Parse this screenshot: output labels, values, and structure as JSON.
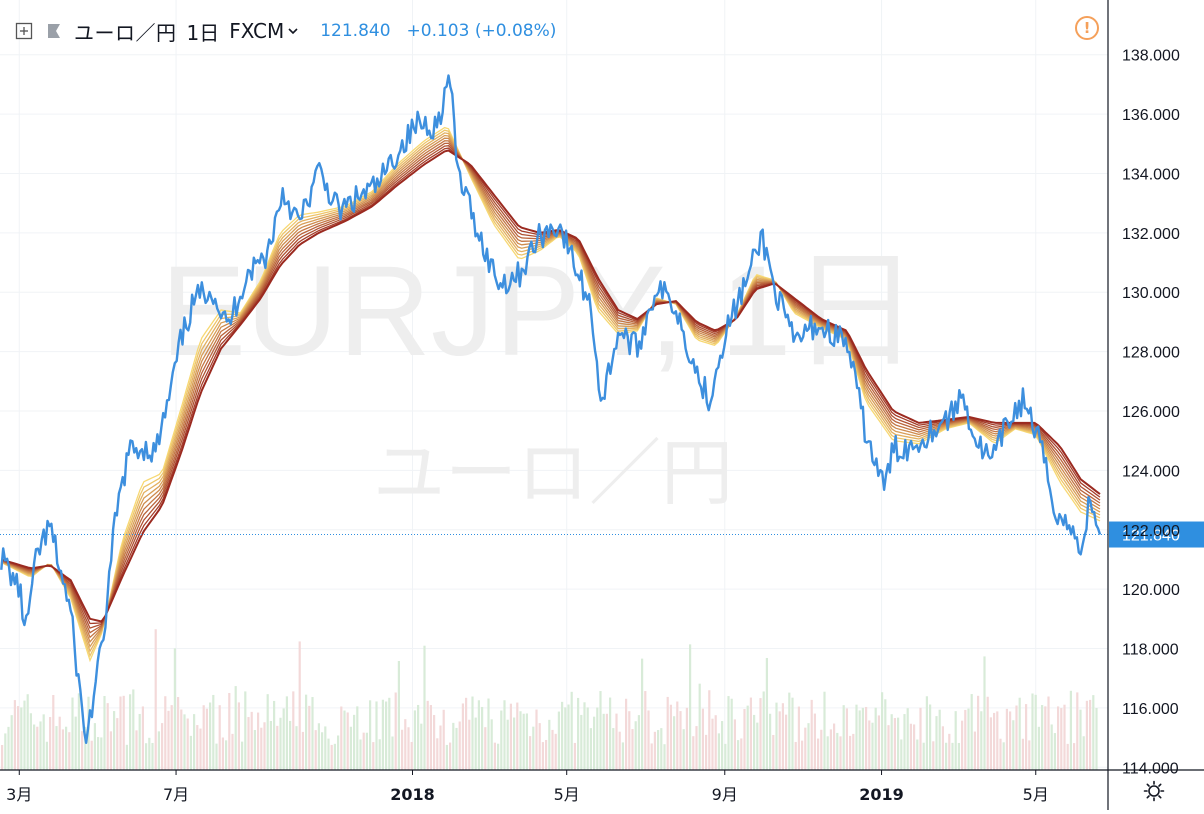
{
  "legend": {
    "symbol": "ユーロ／円",
    "interval": "1日",
    "source": "FXCM",
    "last_price": "121.840",
    "change": "+0.103 (+0.08%)"
  },
  "watermark": {
    "main": "EURJPY, 1日",
    "sub": "ユーロ／円"
  },
  "icons": {
    "add": "plus-square-icon",
    "flag": "flag-icon",
    "source_menu": "chevron-down-icon",
    "alert": "exclamation-circle-icon",
    "settings": "gear-icon"
  },
  "colors": {
    "price_line": "#3d8fde",
    "ribbon_fast": "#f7d873",
    "ribbon_slow": "#9b2a20",
    "volume_up": "#d8ebd8",
    "volume_down": "#f3d9d9",
    "price_tag_bg": "#2f8fe0"
  },
  "chart_data": {
    "type": "line",
    "title": "EURJPY, 1日",
    "subtitle": "ユーロ／円",
    "xlabel": "",
    "ylabel": "",
    "x_ticks": [
      "3月",
      "7月",
      "2018",
      "5月",
      "9月",
      "2019",
      "5月"
    ],
    "y_ticks": [
      "114.000",
      "116.000",
      "118.000",
      "120.000",
      "122.000",
      "124.000",
      "126.000",
      "128.000",
      "130.000",
      "132.000",
      "134.000",
      "136.000",
      "138.000"
    ],
    "ylim": [
      113.0,
      139.0
    ],
    "xlim": [
      "2017-02-14",
      "2019-06-20"
    ],
    "grid": true,
    "last_value_label": "121.840",
    "series": [
      {
        "type": "line",
        "values": [
          [
            "2017-02-15",
            121.1
          ],
          [
            "2017-03-01",
            120.0
          ],
          [
            "2017-03-06",
            118.6
          ],
          [
            "2017-03-15",
            121.2
          ],
          [
            "2017-03-25",
            122.1
          ],
          [
            "2017-04-10",
            119.2
          ],
          [
            "2017-04-18",
            116.2
          ],
          [
            "2017-04-22",
            114.9
          ],
          [
            "2017-05-05",
            118.2
          ],
          [
            "2017-05-15",
            122.4
          ],
          [
            "2017-05-25",
            124.6
          ],
          [
            "2017-06-05",
            124.8
          ],
          [
            "2017-06-15",
            124.6
          ],
          [
            "2017-06-25",
            126.3
          ],
          [
            "2017-07-05",
            128.4
          ],
          [
            "2017-07-15",
            129.7
          ],
          [
            "2017-07-28",
            130.2
          ],
          [
            "2017-08-10",
            128.8
          ],
          [
            "2017-08-25",
            130.6
          ],
          [
            "2017-09-10",
            131.3
          ],
          [
            "2017-09-22",
            133.4
          ],
          [
            "2017-10-05",
            132.3
          ],
          [
            "2017-10-20",
            134.1
          ],
          [
            "2017-11-05",
            132.7
          ],
          [
            "2017-11-20",
            133.2
          ],
          [
            "2017-12-05",
            133.6
          ],
          [
            "2017-12-20",
            134.7
          ],
          [
            "2018-01-05",
            135.7
          ],
          [
            "2018-01-20",
            135.6
          ],
          [
            "2018-01-30",
            137.3
          ],
          [
            "2018-02-05",
            134.1
          ],
          [
            "2018-02-15",
            132.8
          ],
          [
            "2018-03-01",
            131.1
          ],
          [
            "2018-03-10",
            130.3
          ],
          [
            "2018-03-25",
            130.6
          ],
          [
            "2018-04-10",
            131.9
          ],
          [
            "2018-04-25",
            132.3
          ],
          [
            "2018-05-10",
            130.6
          ],
          [
            "2018-05-20",
            129.5
          ],
          [
            "2018-05-28",
            126.2
          ],
          [
            "2018-06-10",
            128.7
          ],
          [
            "2018-06-25",
            128.1
          ],
          [
            "2018-07-10",
            130.2
          ],
          [
            "2018-07-25",
            129.5
          ],
          [
            "2018-08-10",
            127.3
          ],
          [
            "2018-08-20",
            126.4
          ],
          [
            "2018-09-01",
            128.6
          ],
          [
            "2018-09-20",
            130.6
          ],
          [
            "2018-09-30",
            131.9
          ],
          [
            "2018-10-10",
            130.1
          ],
          [
            "2018-10-25",
            128.3
          ],
          [
            "2018-11-10",
            128.9
          ],
          [
            "2018-11-25",
            128.6
          ],
          [
            "2018-12-05",
            128.3
          ],
          [
            "2018-12-20",
            125.2
          ],
          [
            "2019-01-03",
            123.4
          ],
          [
            "2019-01-10",
            124.7
          ],
          [
            "2019-01-25",
            124.8
          ],
          [
            "2019-02-10",
            125.4
          ],
          [
            "2019-02-25",
            125.9
          ],
          [
            "2019-03-05",
            126.6
          ],
          [
            "2019-03-15",
            125.0
          ],
          [
            "2019-03-28",
            124.3
          ],
          [
            "2019-04-10",
            125.7
          ],
          [
            "2019-04-22",
            126.4
          ],
          [
            "2019-05-05",
            124.8
          ],
          [
            "2019-05-15",
            122.8
          ],
          [
            "2019-05-28",
            122.0
          ],
          [
            "2019-06-05",
            121.4
          ],
          [
            "2019-06-12",
            122.9
          ],
          [
            "2019-06-20",
            121.84
          ]
        ]
      },
      {
        "type": "ribbon_band",
        "fast": [
          [
            "2017-02-15",
            120.9
          ],
          [
            "2017-03-10",
            120.4
          ],
          [
            "2017-03-25",
            120.9
          ],
          [
            "2017-04-10",
            119.7
          ],
          [
            "2017-04-25",
            117.6
          ],
          [
            "2017-05-05",
            118.6
          ],
          [
            "2017-05-20",
            121.6
          ],
          [
            "2017-06-05",
            123.6
          ],
          [
            "2017-06-20",
            123.9
          ],
          [
            "2017-07-05",
            126.1
          ],
          [
            "2017-07-20",
            128.4
          ],
          [
            "2017-08-05",
            129.4
          ],
          [
            "2017-08-20",
            129.3
          ],
          [
            "2017-09-05",
            130.4
          ],
          [
            "2017-09-20",
            132.0
          ],
          [
            "2017-10-05",
            132.6
          ],
          [
            "2017-10-20",
            132.7
          ],
          [
            "2017-11-10",
            132.9
          ],
          [
            "2017-12-01",
            133.4
          ],
          [
            "2017-12-20",
            134.3
          ],
          [
            "2018-01-10",
            135.1
          ],
          [
            "2018-01-28",
            135.6
          ],
          [
            "2018-02-15",
            133.9
          ],
          [
            "2018-03-05",
            132.3
          ],
          [
            "2018-03-25",
            131.1
          ],
          [
            "2018-04-10",
            131.4
          ],
          [
            "2018-04-25",
            131.9
          ],
          [
            "2018-05-10",
            131.3
          ],
          [
            "2018-05-25",
            129.4
          ],
          [
            "2018-06-10",
            128.6
          ],
          [
            "2018-06-25",
            128.7
          ],
          [
            "2018-07-10",
            129.8
          ],
          [
            "2018-07-25",
            129.6
          ],
          [
            "2018-08-10",
            128.4
          ],
          [
            "2018-08-25",
            128.2
          ],
          [
            "2018-09-10",
            129.2
          ],
          [
            "2018-09-25",
            130.6
          ],
          [
            "2018-10-10",
            130.4
          ],
          [
            "2018-10-25",
            129.3
          ],
          [
            "2018-11-15",
            128.8
          ],
          [
            "2018-12-05",
            128.4
          ],
          [
            "2018-12-20",
            126.3
          ],
          [
            "2019-01-10",
            125.0
          ],
          [
            "2019-01-30",
            124.9
          ],
          [
            "2019-02-20",
            125.4
          ],
          [
            "2019-03-10",
            125.6
          ],
          [
            "2019-03-30",
            124.9
          ],
          [
            "2019-04-15",
            125.4
          ],
          [
            "2019-05-01",
            125.2
          ],
          [
            "2019-05-20",
            123.6
          ],
          [
            "2019-06-05",
            122.6
          ],
          [
            "2019-06-20",
            122.3
          ]
        ],
        "slow": [
          [
            "2017-02-15",
            121.0
          ],
          [
            "2017-03-10",
            120.7
          ],
          [
            "2017-03-25",
            120.8
          ],
          [
            "2017-04-10",
            120.3
          ],
          [
            "2017-04-25",
            119.0
          ],
          [
            "2017-05-05",
            118.9
          ],
          [
            "2017-05-20",
            120.4
          ],
          [
            "2017-06-05",
            121.9
          ],
          [
            "2017-06-20",
            122.8
          ],
          [
            "2017-07-05",
            124.6
          ],
          [
            "2017-07-20",
            126.6
          ],
          [
            "2017-08-05",
            128.1
          ],
          [
            "2017-08-20",
            128.9
          ],
          [
            "2017-09-05",
            129.8
          ],
          [
            "2017-09-20",
            130.9
          ],
          [
            "2017-10-05",
            131.6
          ],
          [
            "2017-10-20",
            132.0
          ],
          [
            "2017-11-10",
            132.4
          ],
          [
            "2017-12-01",
            132.9
          ],
          [
            "2017-12-20",
            133.6
          ],
          [
            "2018-01-10",
            134.3
          ],
          [
            "2018-01-28",
            134.8
          ],
          [
            "2018-02-15",
            134.3
          ],
          [
            "2018-03-05",
            133.3
          ],
          [
            "2018-03-25",
            132.2
          ],
          [
            "2018-04-10",
            132.0
          ],
          [
            "2018-04-25",
            132.1
          ],
          [
            "2018-05-10",
            131.8
          ],
          [
            "2018-05-25",
            130.5
          ],
          [
            "2018-06-10",
            129.4
          ],
          [
            "2018-06-25",
            129.1
          ],
          [
            "2018-07-10",
            129.6
          ],
          [
            "2018-07-25",
            129.7
          ],
          [
            "2018-08-10",
            129.0
          ],
          [
            "2018-08-25",
            128.7
          ],
          [
            "2018-09-10",
            129.1
          ],
          [
            "2018-09-25",
            130.1
          ],
          [
            "2018-10-10",
            130.3
          ],
          [
            "2018-10-25",
            129.8
          ],
          [
            "2018-11-15",
            129.1
          ],
          [
            "2018-12-05",
            128.7
          ],
          [
            "2018-12-20",
            127.4
          ],
          [
            "2019-01-10",
            126.0
          ],
          [
            "2019-01-30",
            125.6
          ],
          [
            "2019-02-20",
            125.7
          ],
          [
            "2019-03-10",
            125.8
          ],
          [
            "2019-03-30",
            125.6
          ],
          [
            "2019-04-15",
            125.6
          ],
          [
            "2019-05-01",
            125.6
          ],
          [
            "2019-05-20",
            124.8
          ],
          [
            "2019-06-05",
            123.7
          ],
          [
            "2019-06-20",
            123.2
          ]
        ]
      }
    ]
  }
}
